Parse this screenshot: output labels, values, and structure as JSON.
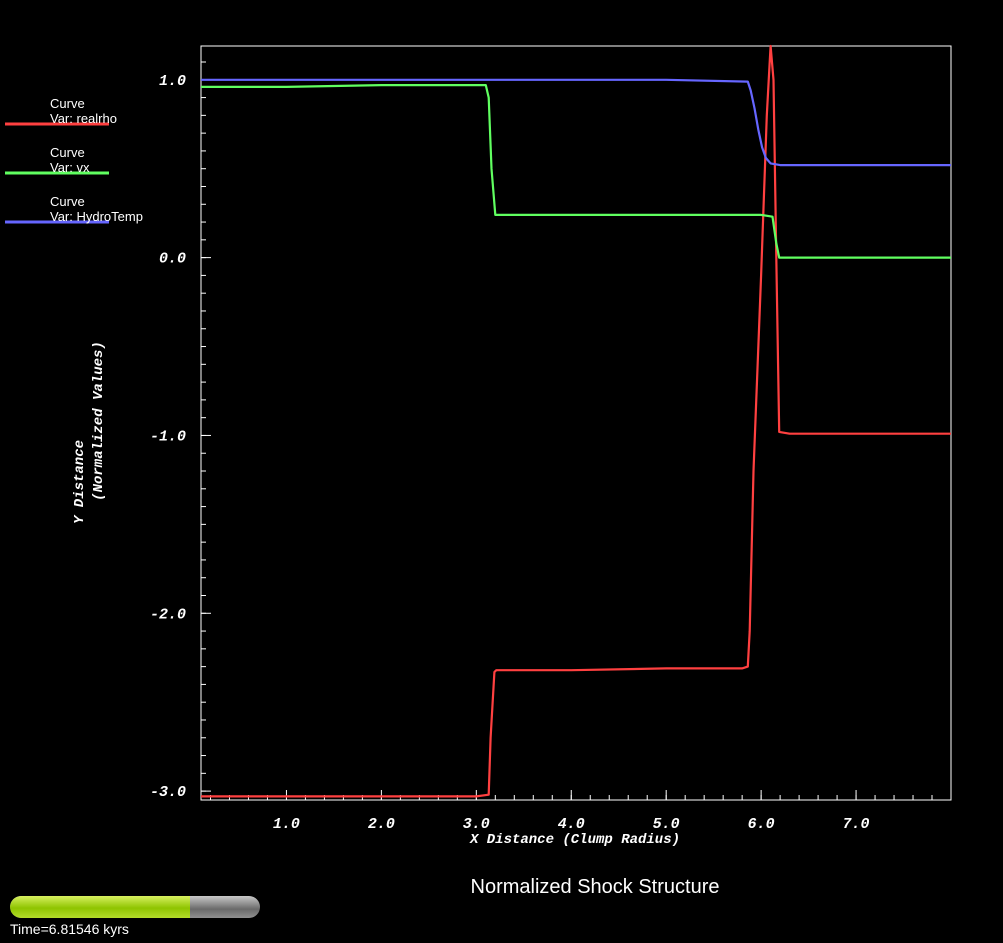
{
  "chart_data": {
    "type": "line",
    "title": "Normalized Shock Structure",
    "xlabel": "X Distance (Clump Radius)",
    "ylabel_line1": "Y Distance",
    "ylabel_line2": "(Normalized Values)",
    "xlim": [
      0.1,
      8.0
    ],
    "ylim": [
      -3.05,
      1.19
    ],
    "x_ticks": [
      1.0,
      2.0,
      3.0,
      4.0,
      5.0,
      6.0,
      7.0
    ],
    "x_tick_labels": [
      "1.0",
      "2.0",
      "3.0",
      "4.0",
      "5.0",
      "6.0",
      "7.0"
    ],
    "y_ticks": [
      1.0,
      0.0,
      -1.0,
      -2.0,
      -3.0
    ],
    "y_tick_labels": [
      "1.0",
      "0.0",
      "-1.0",
      "-2.0",
      "-3.0"
    ],
    "grid": false,
    "legend_position": "left",
    "series": [
      {
        "name": "Curve",
        "var_label": "Var: realrho",
        "color": "#ff4040",
        "x": [
          0.1,
          1.0,
          2.0,
          3.0,
          3.13,
          3.15,
          3.19,
          3.21,
          4.0,
          5.0,
          5.8,
          5.86,
          5.88,
          5.92,
          6.0,
          6.06,
          6.09,
          6.1,
          6.13,
          6.16,
          6.19,
          6.3,
          7.0,
          8.0
        ],
        "y": [
          -3.03,
          -3.03,
          -3.03,
          -3.03,
          -3.02,
          -2.7,
          -2.33,
          -2.32,
          -2.32,
          -2.31,
          -2.31,
          -2.3,
          -2.1,
          -1.2,
          -0.1,
          0.8,
          1.1,
          1.19,
          1.0,
          0.0,
          -0.98,
          -0.99,
          -0.99,
          -0.99
        ]
      },
      {
        "name": "Curve",
        "var_label": "Var: vx",
        "color": "#60ff60",
        "x": [
          0.1,
          1.0,
          2.0,
          3.0,
          3.1,
          3.13,
          3.16,
          3.2,
          3.5,
          4.0,
          5.0,
          6.0,
          6.12,
          6.16,
          6.19,
          7.0,
          8.0
        ],
        "y": [
          0.96,
          0.96,
          0.97,
          0.97,
          0.97,
          0.9,
          0.5,
          0.24,
          0.24,
          0.24,
          0.24,
          0.24,
          0.23,
          0.08,
          0.0,
          0.0,
          0.0
        ]
      },
      {
        "name": "Curve",
        "var_label": "Var: HydroTemp",
        "color": "#6666ff",
        "x": [
          0.1,
          1.0,
          2.0,
          3.0,
          4.0,
          5.0,
          5.86,
          5.89,
          5.93,
          5.97,
          6.01,
          6.05,
          6.1,
          6.2,
          7.0,
          8.0
        ],
        "y": [
          1.0,
          1.0,
          1.0,
          1.0,
          1.0,
          1.0,
          0.99,
          0.94,
          0.84,
          0.72,
          0.62,
          0.56,
          0.53,
          0.52,
          0.52,
          0.52
        ]
      }
    ]
  },
  "time_slider": {
    "label": "Time=6.81546 kyrs",
    "fraction": 0.72
  }
}
